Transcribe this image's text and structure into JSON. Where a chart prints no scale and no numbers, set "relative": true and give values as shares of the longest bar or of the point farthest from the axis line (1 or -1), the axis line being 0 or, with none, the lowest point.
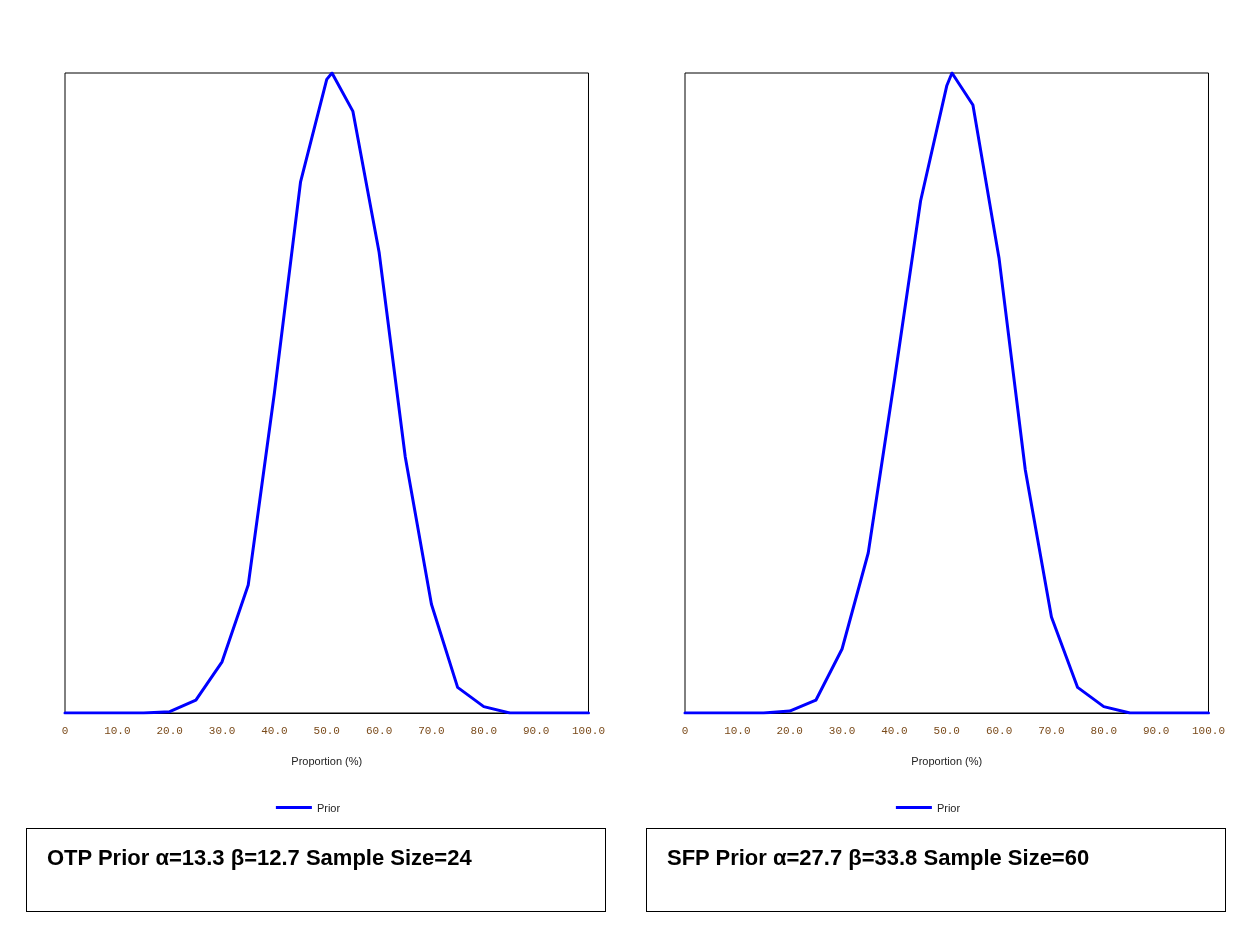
{
  "chart_data": [
    {
      "type": "line",
      "xlabel": "Proportion (%)",
      "x": [
        0,
        10,
        15,
        20,
        25,
        30,
        35,
        40,
        45,
        50,
        51,
        55,
        60,
        65,
        70,
        75,
        80,
        85,
        90,
        100
      ],
      "series": [
        {
          "name": "Prior",
          "color": "#0000ff",
          "values": [
            0,
            0,
            0,
            0.002,
            0.02,
            0.08,
            0.2,
            0.5,
            0.83,
            0.99,
            1,
            0.94,
            0.72,
            0.4,
            0.17,
            0.04,
            0.01,
            0,
            0,
            0
          ]
        }
      ],
      "xlim": [
        0,
        100
      ],
      "xticks": [
        0,
        {
          "value": 10,
          "label": "10.0"
        },
        {
          "value": 20,
          "label": "20.0"
        },
        {
          "value": 30,
          "label": "30.0"
        },
        {
          "value": 40,
          "label": "40.0"
        },
        {
          "value": 50,
          "label": "50.0"
        },
        {
          "value": 60,
          "label": "60.0"
        },
        {
          "value": 70,
          "label": "70.0"
        },
        {
          "value": 80,
          "label": "80.0"
        },
        {
          "value": 90,
          "label": "90.0"
        },
        {
          "value": 100,
          "label": "100.0"
        }
      ],
      "relative": true,
      "tick_labels": "x",
      "grid": false,
      "legend": "bottom",
      "marker": "none",
      "line_style": "solid",
      "annotations": [
        "OTP Prior α=13.3 β=12.7 Sample Size=24"
      ]
    },
    {
      "type": "line",
      "xlabel": "Proportion (%)",
      "x": [
        0,
        10,
        15,
        20,
        25,
        30,
        35,
        40,
        45,
        50,
        51,
        55,
        60,
        65,
        70,
        75,
        80,
        85,
        90,
        100
      ],
      "series": [
        {
          "name": "Prior",
          "color": "#0000ff",
          "values": [
            0,
            0,
            0,
            0.003,
            0.02,
            0.1,
            0.25,
            0.52,
            0.8,
            0.98,
            1,
            0.95,
            0.71,
            0.38,
            0.15,
            0.04,
            0.01,
            0,
            0,
            0
          ]
        }
      ],
      "xlim": [
        0,
        100
      ],
      "xticks": [
        0,
        {
          "value": 10,
          "label": "10.0"
        },
        {
          "value": 20,
          "label": "20.0"
        },
        {
          "value": 30,
          "label": "30.0"
        },
        {
          "value": 40,
          "label": "40.0"
        },
        {
          "value": 50,
          "label": "50.0"
        },
        {
          "value": 60,
          "label": "60.0"
        },
        {
          "value": 70,
          "label": "70.0"
        },
        {
          "value": 80,
          "label": "80.0"
        },
        {
          "value": 90,
          "label": "90.0"
        },
        {
          "value": 100,
          "label": "100.0"
        }
      ],
      "relative": true,
      "tick_labels": "x",
      "grid": false,
      "legend": "bottom",
      "marker": "none",
      "line_style": "solid",
      "annotations": [
        "SFP Prior α=27.7 β=33.8 Sample Size=60"
      ]
    }
  ]
}
